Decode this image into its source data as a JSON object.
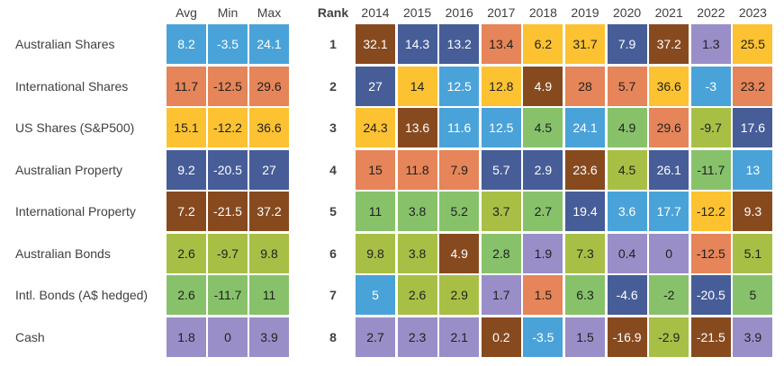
{
  "chart_data": {
    "type": "table",
    "stats_headers": [
      "Avg",
      "Min",
      "Max"
    ],
    "rank_header": "Rank",
    "years": [
      "2014",
      "2015",
      "2016",
      "2017",
      "2018",
      "2019",
      "2020",
      "2021",
      "2022",
      "2023"
    ],
    "assets": [
      {
        "name": "Australian Shares",
        "color": "#4aa3d8",
        "avg": "8.2",
        "min": "-3.5",
        "max": "24.1"
      },
      {
        "name": "International Shares",
        "color": "#e58559",
        "avg": "11.7",
        "min": "-12.5",
        "max": "29.6"
      },
      {
        "name": "US Shares (S&P500)",
        "color": "#fcc232",
        "avg": "15.1",
        "min": "-12.2",
        "max": "36.6"
      },
      {
        "name": "Australian Property",
        "color": "#475d98",
        "avg": "9.2",
        "min": "-20.5",
        "max": "27"
      },
      {
        "name": "International Property",
        "color": "#874a1f",
        "avg": "7.2",
        "min": "-21.5",
        "max": "37.2"
      },
      {
        "name": "Australian Bonds",
        "color": "#a8bf46",
        "avg": "2.6",
        "min": "-9.7",
        "max": "9.8"
      },
      {
        "name": "Intl. Bonds (A$ hedged)",
        "color": "#87c26b",
        "avg": "2.6",
        "min": "-11.7",
        "max": "11"
      },
      {
        "name": "Cash",
        "color": "#9a8ec8",
        "avg": "1.8",
        "min": "0",
        "max": "3.9"
      }
    ],
    "ranks": [
      "1",
      "2",
      "3",
      "4",
      "5",
      "6",
      "7",
      "8"
    ],
    "grid": [
      [
        {
          "v": "32.1",
          "a": 4
        },
        {
          "v": "14.3",
          "a": 3
        },
        {
          "v": "13.2",
          "a": 3
        },
        {
          "v": "13.4",
          "a": 1
        },
        {
          "v": "6.2",
          "a": 2
        },
        {
          "v": "31.7",
          "a": 2
        },
        {
          "v": "7.9",
          "a": 3
        },
        {
          "v": "37.2",
          "a": 4
        },
        {
          "v": "1.3",
          "a": 7
        },
        {
          "v": "25.5",
          "a": 2
        }
      ],
      [
        {
          "v": "27",
          "a": 3
        },
        {
          "v": "14",
          "a": 2
        },
        {
          "v": "12.5",
          "a": 0
        },
        {
          "v": "12.8",
          "a": 2
        },
        {
          "v": "4.9",
          "a": 4
        },
        {
          "v": "28",
          "a": 1
        },
        {
          "v": "5.7",
          "a": 1
        },
        {
          "v": "36.6",
          "a": 2
        },
        {
          "v": "-3",
          "a": 0
        },
        {
          "v": "23.2",
          "a": 1
        }
      ],
      [
        {
          "v": "24.3",
          "a": 2
        },
        {
          "v": "13.6",
          "a": 4
        },
        {
          "v": "11.6",
          "a": 0
        },
        {
          "v": "12.5",
          "a": 0
        },
        {
          "v": "4.5",
          "a": 6
        },
        {
          "v": "24.1",
          "a": 0
        },
        {
          "v": "4.9",
          "a": 6
        },
        {
          "v": "29.6",
          "a": 1
        },
        {
          "v": "-9.7",
          "a": 5
        },
        {
          "v": "17.6",
          "a": 3
        }
      ],
      [
        {
          "v": "15",
          "a": 1
        },
        {
          "v": "11.8",
          "a": 1
        },
        {
          "v": "7.9",
          "a": 1
        },
        {
          "v": "5.7",
          "a": 3
        },
        {
          "v": "2.9",
          "a": 3
        },
        {
          "v": "23.6",
          "a": 4
        },
        {
          "v": "4.5",
          "a": 5
        },
        {
          "v": "26.1",
          "a": 3
        },
        {
          "v": "-11.7",
          "a": 6
        },
        {
          "v": "13",
          "a": 0
        }
      ],
      [
        {
          "v": "11",
          "a": 6
        },
        {
          "v": "3.8",
          "a": 6
        },
        {
          "v": "5.2",
          "a": 6
        },
        {
          "v": "3.7",
          "a": 5
        },
        {
          "v": "2.7",
          "a": 6
        },
        {
          "v": "19.4",
          "a": 3
        },
        {
          "v": "3.6",
          "a": 0
        },
        {
          "v": "17.7",
          "a": 0
        },
        {
          "v": "-12.2",
          "a": 2
        },
        {
          "v": "9.3",
          "a": 4
        }
      ],
      [
        {
          "v": "9.8",
          "a": 5
        },
        {
          "v": "3.8",
          "a": 5
        },
        {
          "v": "4.9",
          "a": 4
        },
        {
          "v": "2.8",
          "a": 6
        },
        {
          "v": "1.9",
          "a": 7
        },
        {
          "v": "7.3",
          "a": 5
        },
        {
          "v": "0.4",
          "a": 7
        },
        {
          "v": "0",
          "a": 7
        },
        {
          "v": "-12.5",
          "a": 1
        },
        {
          "v": "5.1",
          "a": 5
        }
      ],
      [
        {
          "v": "5",
          "a": 0
        },
        {
          "v": "2.6",
          "a": 5
        },
        {
          "v": "2.9",
          "a": 5
        },
        {
          "v": "1.7",
          "a": 7
        },
        {
          "v": "1.5",
          "a": 1
        },
        {
          "v": "6.3",
          "a": 6
        },
        {
          "v": "-4.6",
          "a": 3
        },
        {
          "v": "-2",
          "a": 6
        },
        {
          "v": "-20.5",
          "a": 3
        },
        {
          "v": "5",
          "a": 6
        }
      ],
      [
        {
          "v": "2.7",
          "a": 7
        },
        {
          "v": "2.3",
          "a": 7
        },
        {
          "v": "2.1",
          "a": 7
        },
        {
          "v": "0.2",
          "a": 4
        },
        {
          "v": "-3.5",
          "a": 0
        },
        {
          "v": "1.5",
          "a": 7
        },
        {
          "v": "-16.9",
          "a": 4
        },
        {
          "v": "-2.9",
          "a": 5
        },
        {
          "v": "-21.5",
          "a": 4
        },
        {
          "v": "3.9",
          "a": 7
        }
      ]
    ]
  }
}
